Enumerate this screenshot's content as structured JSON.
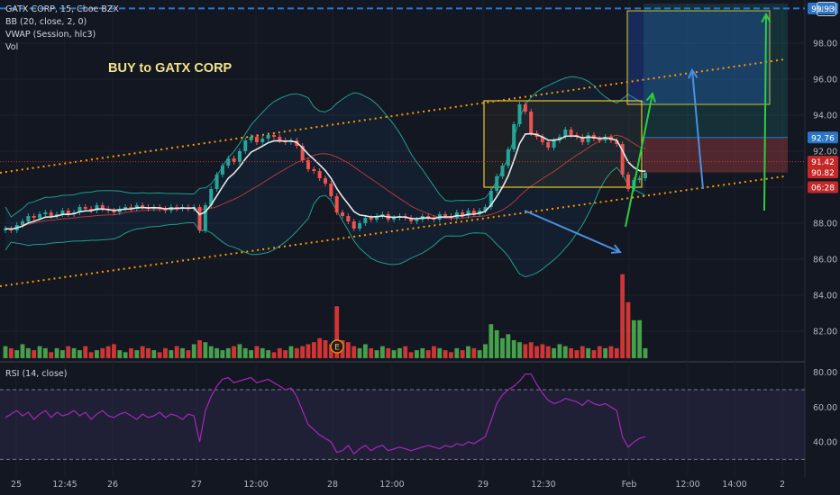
{
  "legend": {
    "symbol": "GATX CORP, 15, Cboe BZX",
    "bb": "BB (20, close, 2, 0)",
    "vwap": "VWAP (Session, hlc3)",
    "vol": "Vol"
  },
  "annotation_text": "BUY to GATX CORP",
  "currency_button": "USD",
  "rsi_legend": "RSI (14, close)",
  "earnings_marker": "E",
  "colors": {
    "background": "#131722",
    "up": "#26a69a",
    "down": "#ef5350",
    "vol_up": "#4caf50",
    "vol_down": "#e53935",
    "bb_band": "#1e9e8a",
    "vwap": "#e9e9e9",
    "channel": "#ff9800",
    "rsi": "#9c27b0",
    "arrow_blue": "#4a90e2",
    "arrow_green": "#2ecc40",
    "box_yellow": "#e6c82a"
  },
  "chart_data": {
    "type": "candlestick",
    "price_axis": {
      "ticks": [
        "98.00",
        "96.00",
        "94.00",
        "92.00",
        "90.00",
        "88.00",
        "86.00",
        "84.00",
        "82.00"
      ],
      "ylim": [
        80.5,
        100.2
      ],
      "labels": [
        {
          "text": "99.93",
          "value": 99.93,
          "color": "#2a77c9"
        },
        {
          "text": "92.76",
          "value": 92.76,
          "color": "#2a77c9"
        },
        {
          "text": "91.42",
          "value": 91.42,
          "color": "#c62828"
        },
        {
          "text": "90.82",
          "value": 90.82,
          "color": "#c62828"
        },
        {
          "text": "06:28",
          "value": 90.0,
          "color": "#c62828"
        }
      ]
    },
    "rsi_axis": {
      "ticks": [
        "80.00",
        "60.00",
        "40.00"
      ],
      "ylim": [
        25,
        85
      ],
      "upper": 70,
      "lower": 30
    },
    "time_axis": [
      "25",
      "12:45",
      "26",
      "27",
      "12:00",
      "28",
      "12:00",
      "29",
      "12:30",
      "Feb",
      "12:00",
      "14:00",
      "2"
    ],
    "series": [
      {
        "name": "price",
        "values": [
          87.7,
          87.6,
          87.9,
          88.1,
          88.4,
          88.3,
          88.5,
          88.6,
          88.4,
          88.5,
          88.7,
          88.5,
          88.6,
          88.9,
          88.8,
          88.7,
          89.0,
          88.8,
          88.7,
          88.6,
          88.8,
          88.9,
          88.8,
          89.0,
          88.9,
          88.8,
          88.9,
          88.8,
          88.7,
          88.9,
          88.8,
          88.9,
          88.8,
          88.9,
          87.6,
          89.0,
          89.9,
          90.7,
          91.2,
          91.6,
          91.4,
          92.0,
          92.6,
          92.8,
          92.5,
          92.7,
          92.9,
          92.8,
          92.6,
          92.5,
          92.6,
          92.3,
          91.5,
          91.0,
          90.9,
          90.5,
          90.2,
          89.5,
          88.6,
          88.4,
          88.1,
          87.7,
          88.0,
          88.3,
          88.2,
          88.4,
          88.5,
          88.2,
          88.3,
          88.4,
          88.3,
          88.1,
          88.2,
          88.4,
          88.3,
          88.2,
          88.5,
          88.4,
          88.3,
          88.6,
          88.4,
          88.7,
          88.5,
          88.7,
          88.9,
          89.8,
          90.6,
          91.2,
          92.1,
          93.5,
          94.6,
          94.2,
          93.0,
          92.8,
          92.5,
          92.2,
          92.6,
          92.8,
          93.2,
          92.9,
          92.8,
          92.5,
          92.9,
          92.7,
          92.6,
          92.8,
          92.6,
          92.4,
          90.7,
          89.9,
          90.4,
          90.5,
          90.8
        ]
      },
      {
        "name": "volume",
        "values": [
          6,
          5,
          4,
          7,
          5,
          4,
          6,
          5,
          3,
          5,
          4,
          6,
          5,
          4,
          6,
          3,
          4,
          5,
          6,
          7,
          4,
          3,
          5,
          4,
          6,
          5,
          4,
          3,
          5,
          4,
          6,
          5,
          4,
          7,
          9,
          8,
          6,
          5,
          4,
          5,
          6,
          7,
          5,
          4,
          6,
          5,
          4,
          3,
          5,
          4,
          6,
          5,
          6,
          7,
          8,
          10,
          9,
          7,
          26,
          9,
          8,
          6,
          5,
          7,
          5,
          4,
          6,
          5,
          4,
          5,
          6,
          3,
          4,
          5,
          4,
          6,
          5,
          4,
          3,
          5,
          4,
          6,
          5,
          4,
          7,
          17,
          14,
          10,
          12,
          9,
          8,
          7,
          8,
          6,
          7,
          6,
          5,
          7,
          6,
          5,
          4,
          6,
          5,
          4,
          6,
          5,
          6,
          5,
          42,
          28,
          19,
          19,
          5
        ]
      },
      {
        "name": "RSI",
        "values": [
          54,
          56,
          58,
          55,
          57,
          53,
          56,
          58,
          54,
          57,
          55,
          56,
          58,
          55,
          57,
          53,
          56,
          58,
          55,
          54,
          56,
          57,
          55,
          53,
          56,
          54,
          55,
          57,
          54,
          56,
          55,
          53,
          56,
          55,
          40,
          58,
          66,
          72,
          76,
          77,
          74,
          75,
          76,
          77,
          74,
          75,
          76,
          74,
          72,
          70,
          71,
          66,
          58,
          50,
          47,
          44,
          42,
          40,
          34,
          35,
          38,
          33,
          36,
          38,
          35,
          37,
          38,
          35,
          36,
          37,
          36,
          35,
          36,
          37,
          38,
          37,
          36,
          38,
          37,
          39,
          38,
          40,
          39,
          41,
          43,
          52,
          62,
          67,
          70,
          72,
          75,
          79,
          79,
          73,
          68,
          64,
          62,
          63,
          65,
          64,
          63,
          61,
          64,
          62,
          61,
          62,
          60,
          58,
          43,
          37,
          40,
          42,
          43
        ]
      }
    ]
  }
}
